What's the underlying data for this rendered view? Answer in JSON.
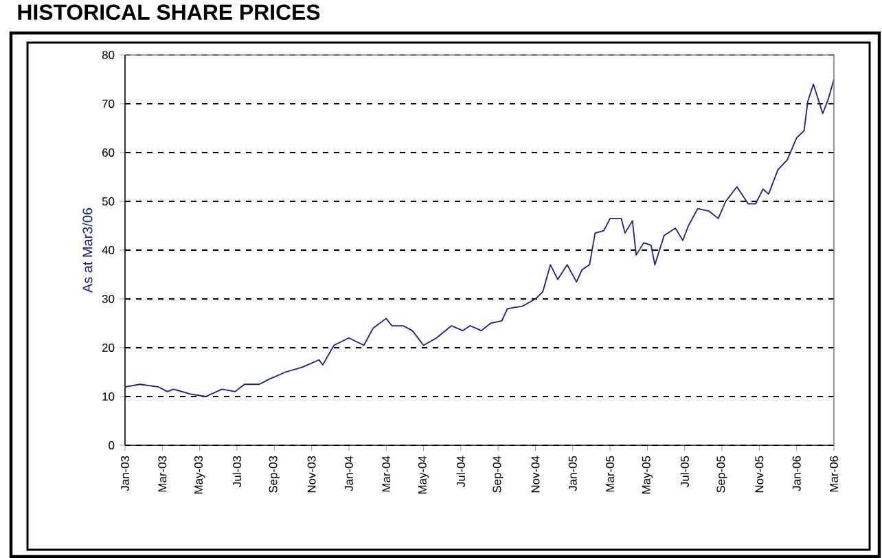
{
  "chart_data": {
    "type": "line",
    "title": "HISTORICAL SHARE PRICES",
    "ylabel": "As at Mar3/06",
    "color": "#1c1c8c",
    "grid": "y",
    "xlim": [
      "2003-01-01",
      "2006-03-01"
    ],
    "xticks": [
      {
        "value": "2003-01",
        "label": "Jan-03"
      },
      {
        "value": "2003-03",
        "label": "Mar-03"
      },
      {
        "value": "2003-05",
        "label": "May-03"
      },
      {
        "value": "2003-07",
        "label": "Jul-03"
      },
      {
        "value": "2003-09",
        "label": "Sep-03"
      },
      {
        "value": "2003-11",
        "label": "Nov-03"
      },
      {
        "value": "2004-01",
        "label": "Jan-04"
      },
      {
        "value": "2004-03",
        "label": "Mar-04"
      },
      {
        "value": "2004-05",
        "label": "May-04"
      },
      {
        "value": "2004-07",
        "label": "Jul-04"
      },
      {
        "value": "2004-09",
        "label": "Sep-04"
      },
      {
        "value": "2004-11",
        "label": "Nov-04"
      },
      {
        "value": "2005-01",
        "label": "Jan-05"
      },
      {
        "value": "2005-03",
        "label": "Mar-05"
      },
      {
        "value": "2005-05",
        "label": "May-05"
      },
      {
        "value": "2005-07",
        "label": "Jul-05"
      },
      {
        "value": "2005-09",
        "label": "Sep-05"
      },
      {
        "value": "2005-11",
        "label": "Nov-05"
      },
      {
        "value": "2006-01",
        "label": "Jan-06"
      },
      {
        "value": "2006-03",
        "label": "Mar-06"
      }
    ],
    "ylim": [
      0,
      80
    ],
    "yticks": [
      0,
      10,
      20,
      30,
      40,
      50,
      60,
      70,
      80
    ],
    "x": [
      "2003-01-02",
      "2003-01-25",
      "2003-02-24",
      "2003-03-09",
      "2003-03-19",
      "2003-04-16",
      "2003-05-11",
      "2003-06-07",
      "2003-06-28",
      "2003-07-13",
      "2003-08-07",
      "2003-08-22",
      "2003-09-19",
      "2003-10-16",
      "2003-11-13",
      "2003-11-19",
      "2003-12-07",
      "2004-01-01",
      "2004-01-25",
      "2004-02-10",
      "2004-03-01",
      "2004-03-10",
      "2004-03-28",
      "2004-04-13",
      "2004-05-01",
      "2004-05-22",
      "2004-06-16",
      "2004-07-04",
      "2004-07-16",
      "2004-08-04",
      "2004-08-19",
      "2004-09-07",
      "2004-09-16",
      "2004-10-10",
      "2004-11-01",
      "2004-11-13",
      "2004-11-25",
      "2004-12-07",
      "2004-12-22",
      "2005-01-07",
      "2005-01-16",
      "2005-01-28",
      "2005-02-07",
      "2005-02-21",
      "2005-03-01",
      "2005-03-19",
      "2005-03-25",
      "2005-04-07",
      "2005-04-13",
      "2005-04-25",
      "2005-05-07",
      "2005-05-13",
      "2005-05-28",
      "2005-06-16",
      "2005-06-28",
      "2005-07-07",
      "2005-07-22",
      "2005-08-10",
      "2005-08-25",
      "2005-09-07",
      "2005-09-25",
      "2005-10-13",
      "2005-10-25",
      "2005-11-07",
      "2005-11-16",
      "2005-12-01",
      "2005-12-16",
      "2006-01-01",
      "2006-01-13",
      "2006-01-19",
      "2006-01-28",
      "2006-02-13",
      "2006-02-22",
      "2006-03-01"
    ],
    "values": [
      12,
      12.5,
      12,
      11,
      11.5,
      10.5,
      10,
      11.5,
      11,
      12.5,
      12.5,
      13.5,
      15,
      16,
      17.5,
      16.5,
      20.5,
      22,
      20.5,
      24,
      26,
      24.5,
      24.5,
      23.5,
      20.5,
      22,
      24.5,
      23.5,
      24.5,
      23.5,
      25,
      25.5,
      28,
      28.5,
      30,
      31.5,
      37,
      34,
      37,
      33.5,
      36,
      37,
      43.5,
      44,
      46.5,
      46.5,
      43.5,
      46,
      39,
      41.5,
      41,
      37,
      43,
      44.5,
      42,
      45,
      48.5,
      48,
      46.5,
      50,
      53,
      49.5,
      49.5,
      52.5,
      51.5,
      56.5,
      58.5,
      63,
      64.5,
      70.5,
      74,
      68,
      71,
      75
    ]
  }
}
